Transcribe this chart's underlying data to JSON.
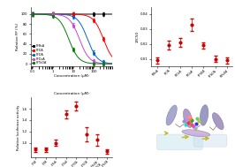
{
  "top_left": {
    "xlabel": "Concentration (µM)",
    "ylabel": "Relative FP (%)",
    "legend": [
      "PFBsA",
      "PFOA",
      "PFDA",
      "PFDoA",
      "PFTeDA"
    ],
    "colors": [
      "black",
      "red",
      "#0066cc",
      "#cc44cc",
      "green"
    ],
    "ic50s": [
      99999,
      300,
      50,
      20,
      6
    ],
    "ylim": [
      -5,
      115
    ],
    "xlim_log": [
      -1,
      3
    ]
  },
  "top_right": {
    "ylabel": "1/IC50",
    "categories": [
      "PFBsA",
      "PFOA",
      "PFDeA",
      "PFDoA",
      "PFTrDA",
      "PFTeDA",
      "PFPeDA"
    ],
    "values": [
      0.009,
      0.019,
      0.021,
      0.033,
      0.019,
      0.01,
      0.009
    ],
    "errors": [
      0.002,
      0.003,
      0.003,
      0.004,
      0.002,
      0.002,
      0.002
    ],
    "ylim": [
      0.005,
      0.045
    ],
    "color": "#cc0000"
  },
  "bottom_left": {
    "title": "Concentration (µM)",
    "ylabel": "Relative luciferase activity",
    "categories": [
      "PFSA",
      "PFBA",
      "PFBsA",
      "PFDoA",
      "PFTrDA",
      "PFTeDA",
      "PFPeDA/\nPFTeDA",
      "PFPeDA"
    ],
    "values": [
      0.88,
      0.88,
      1.0,
      1.5,
      1.65,
      1.15,
      1.05,
      0.85
    ],
    "errors": [
      0.04,
      0.04,
      0.06,
      0.07,
      0.08,
      0.12,
      0.1,
      0.04
    ],
    "ylim": [
      0.75,
      1.8
    ],
    "color": "#cc0000"
  },
  "bottom_right": {
    "bg_color": "#b8cfe0",
    "helix_colors": [
      "#9898c8",
      "#a888c8",
      "#8888b8",
      "#9888b8",
      "#c8a8d8"
    ],
    "ligand_colors": [
      "#ff3030",
      "#30a030",
      "#3030ff",
      "#ff8030",
      "#ff30ff",
      "#30d0d0",
      "#d0c030",
      "#ff9090",
      "#90c090",
      "#9090d0",
      "#d06060",
      "#60d060"
    ]
  }
}
